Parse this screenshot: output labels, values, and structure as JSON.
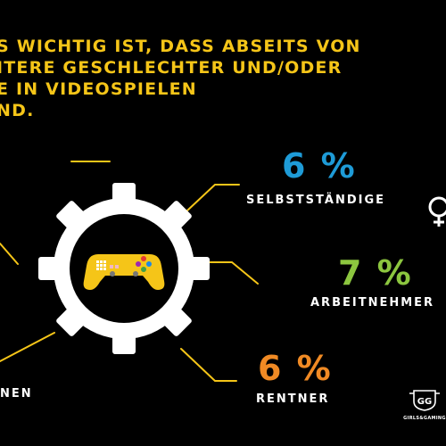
{
  "headline": {
    "lines": [
      "S WICHTIG IST, DASS ABSEITS VON",
      "ITERE GESCHLECHTER UND/ODER",
      "E IN VIDEOSPIELEN",
      "ND."
    ]
  },
  "stats": [
    {
      "value": "6 %",
      "label": "SELBSTSTÄNDIGE",
      "color": "#1e9bd7"
    },
    {
      "value": "7 %",
      "label": "ARBEITNEHMER",
      "color": "#8cc63f"
    },
    {
      "value": "6 %",
      "label": "RENTNER",
      "color": "#f08a24"
    }
  ],
  "left_label_fragment": "NEN",
  "brand": {
    "name": "GIRLS&GAMING",
    "monogram": "GG"
  },
  "icons": {
    "center": "gamepad-icon",
    "gear": "gear-icon",
    "right_edge": "female-symbol-icon"
  },
  "colors": {
    "accent": "#f5c518",
    "background": "#000000",
    "gear": "#ffffff"
  }
}
